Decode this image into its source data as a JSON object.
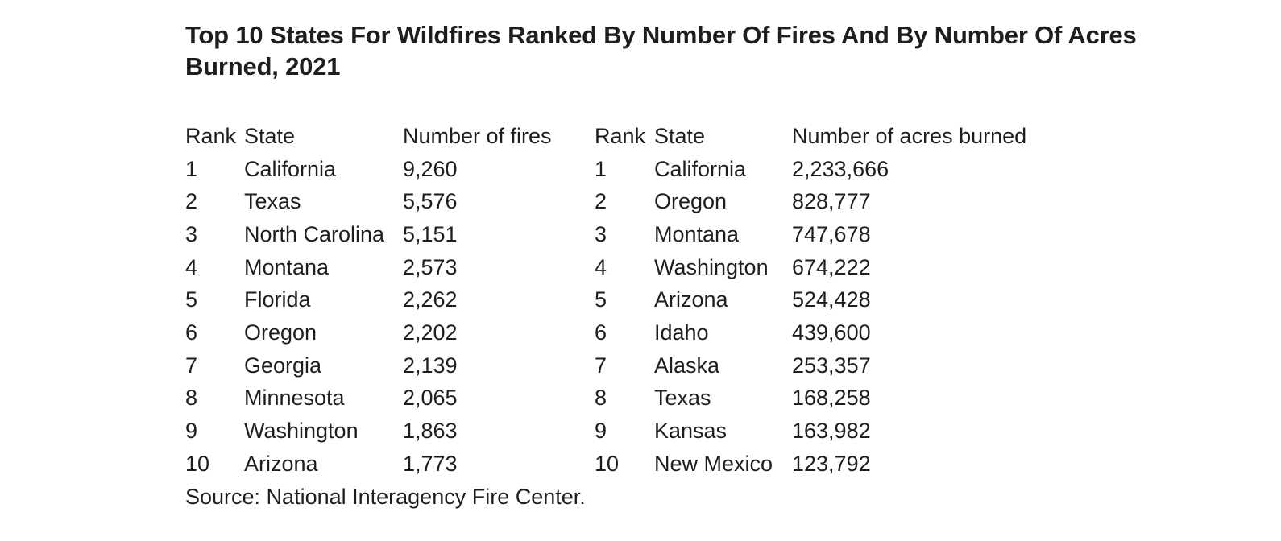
{
  "page": {
    "title_line1": "Top 10 States For Wildfires Ranked By Number Of Fires And By Number Of Acres",
    "title_line2": "Burned, 2021",
    "title_full": "Top 10 States For Wildfires Ranked By Number Of Fires And By Number Of Acres Burned, 2021",
    "source": "Source: National Interagency Fire Center.",
    "text_color": "#1e1e21",
    "background_color": "#ffffff"
  },
  "table": {
    "fires": {
      "headers": {
        "rank": "Rank",
        "state": "State",
        "value": "Number of fires"
      },
      "rows": [
        {
          "rank": "1",
          "state": "California",
          "value": "9,260"
        },
        {
          "rank": "2",
          "state": "Texas",
          "value": "5,576"
        },
        {
          "rank": "3",
          "state": "North Carolina",
          "value": "5,151"
        },
        {
          "rank": "4",
          "state": "Montana",
          "value": "2,573"
        },
        {
          "rank": "5",
          "state": "Florida",
          "value": "2,262"
        },
        {
          "rank": "6",
          "state": "Oregon",
          "value": "2,202"
        },
        {
          "rank": "7",
          "state": "Georgia",
          "value": "2,139"
        },
        {
          "rank": "8",
          "state": "Minnesota",
          "value": "2,065"
        },
        {
          "rank": "9",
          "state": "Washington",
          "value": "1,863"
        },
        {
          "rank": "10",
          "state": "Arizona",
          "value": "1,773"
        }
      ]
    },
    "acres": {
      "headers": {
        "rank": "Rank",
        "state": "State",
        "value": "Number of acres burned"
      },
      "rows": [
        {
          "rank": "1",
          "state": "California",
          "value": "2,233,666"
        },
        {
          "rank": "2",
          "state": "Oregon",
          "value": "828,777"
        },
        {
          "rank": "3",
          "state": "Montana",
          "value": "747,678"
        },
        {
          "rank": "4",
          "state": "Washington",
          "value": "674,222"
        },
        {
          "rank": "5",
          "state": "Arizona",
          "value": "524,428"
        },
        {
          "rank": "6",
          "state": "Idaho",
          "value": "439,600"
        },
        {
          "rank": "7",
          "state": "Alaska",
          "value": "253,357"
        },
        {
          "rank": "8",
          "state": "Texas",
          "value": "168,258"
        },
        {
          "rank": "9",
          "state": "Kansas",
          "value": "163,982"
        },
        {
          "rank": "10",
          "state": "New Mexico",
          "value": "123,792"
        }
      ]
    }
  }
}
